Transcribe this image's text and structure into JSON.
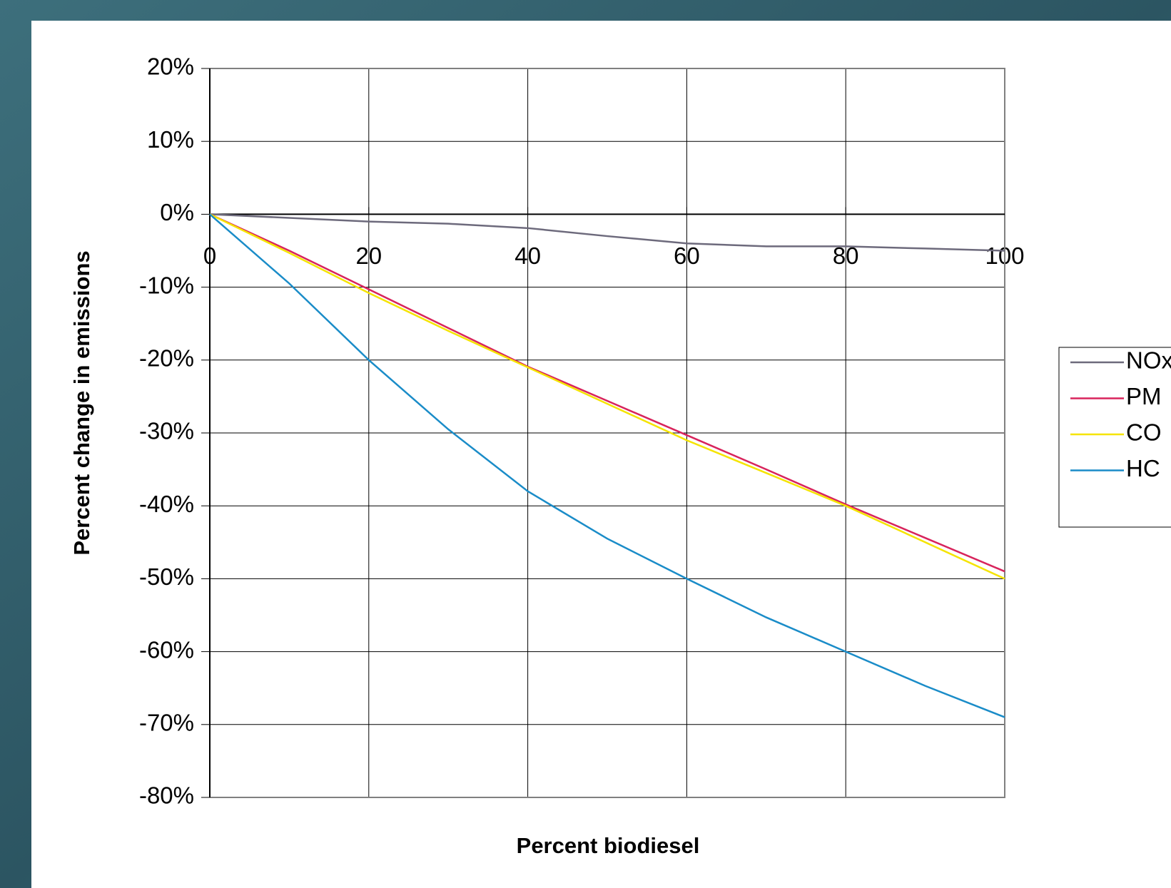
{
  "chart_data": {
    "type": "line",
    "x_label": "Percent biodiesel",
    "y_label": "Percent change in emissions",
    "x": [
      0,
      10,
      20,
      30,
      40,
      50,
      60,
      70,
      80,
      90,
      100
    ],
    "series": [
      {
        "name": "NOx",
        "color": "#6d6a7c",
        "values": [
          0,
          -0.5,
          -1,
          -1.3,
          -1.9,
          -3.0,
          -4.0,
          -4.4,
          -4.4,
          -4.7,
          -5.0
        ]
      },
      {
        "name": "PM",
        "color": "#d8245c",
        "values": [
          0,
          -5,
          -10.3,
          -15.6,
          -20.9,
          -25.6,
          -30.3,
          -35,
          -39.8,
          -44.4,
          -49
        ]
      },
      {
        "name": "CO",
        "color": "#f5e400",
        "values": [
          0,
          -5.3,
          -10.8,
          -16,
          -21,
          -26,
          -31,
          -35.5,
          -40,
          -45,
          -50
        ]
      },
      {
        "name": "HC",
        "color": "#1a8cc8",
        "values": [
          0,
          -9.5,
          -20,
          -29.5,
          -38,
          -44.5,
          -50,
          -55.3,
          -60,
          -64.7,
          -69
        ]
      }
    ],
    "xlim": [
      0,
      100
    ],
    "xticks": [
      0,
      20,
      40,
      60,
      80,
      100
    ],
    "ylim": [
      -80,
      20
    ],
    "yticks": [
      {
        "value": 20,
        "label": "20%"
      },
      {
        "value": 10,
        "label": "10%"
      },
      {
        "value": 0,
        "label": "0%"
      },
      {
        "value": -10,
        "label": "-10%"
      },
      {
        "value": -20,
        "label": "-20%"
      },
      {
        "value": -30,
        "label": "-30%"
      },
      {
        "value": -40,
        "label": "-40%"
      },
      {
        "value": -50,
        "label": "-50%"
      },
      {
        "value": -60,
        "label": "-60%"
      },
      {
        "value": -70,
        "label": "-70%"
      },
      {
        "value": -80,
        "label": "-80%"
      }
    ],
    "grid": true,
    "legend": "right"
  }
}
